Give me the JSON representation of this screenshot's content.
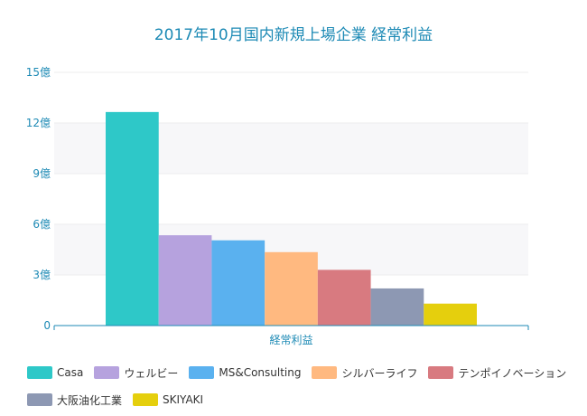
{
  "chart_data": {
    "type": "bar",
    "title": "2017年10月国内新規上場企業 経常利益",
    "categories": [
      "経常利益"
    ],
    "xlabel": "",
    "ylabel": "",
    "ylim": [
      0,
      15
    ],
    "yticks": [
      0,
      3,
      6,
      9,
      12,
      15
    ],
    "ytick_labels": [
      "0",
      "3億",
      "6億",
      "9億",
      "12億",
      "15億"
    ],
    "grid": true,
    "legend_position": "bottom",
    "series": [
      {
        "name": "Casa",
        "values": [
          12.65
        ],
        "color": "#2ec8c8"
      },
      {
        "name": "ウェルビー",
        "values": [
          5.35
        ],
        "color": "#b6a2de"
      },
      {
        "name": "MS&Consulting",
        "values": [
          5.05
        ],
        "color": "#5ab1ef"
      },
      {
        "name": "シルバーライフ",
        "values": [
          4.35
        ],
        "color": "#ffb980"
      },
      {
        "name": "テンポイノベーション",
        "values": [
          3.3
        ],
        "color": "#d87a80"
      },
      {
        "name": "大阪油化工業",
        "values": [
          2.2
        ],
        "color": "#8d98b3"
      },
      {
        "name": "SKIYAKI",
        "values": [
          1.3
        ],
        "color": "#e5cf0d"
      }
    ]
  }
}
